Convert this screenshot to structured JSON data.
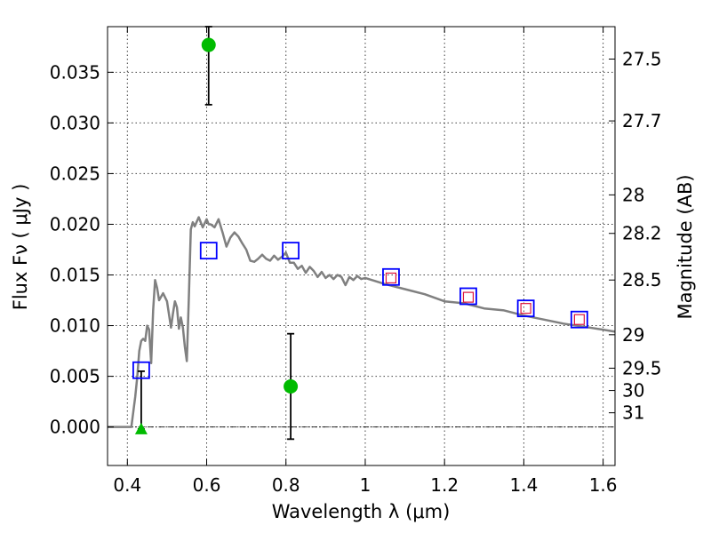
{
  "chart_data": {
    "type": "scatter",
    "title": "",
    "xlabel": "Wavelength  λ (μm)",
    "ylabel": "Flux  Fν  ( μJy )",
    "ylabel_right": "Magnitude (AB)",
    "xlim": [
      0.35,
      1.63
    ],
    "ylim": [
      -0.0038,
      0.0395
    ],
    "grid": true,
    "x_ticks": [
      {
        "value": 0.4,
        "label": "0.4"
      },
      {
        "value": 0.6,
        "label": "0.6"
      },
      {
        "value": 0.8,
        "label": "0.8"
      },
      {
        "value": 1.0,
        "label": "1"
      },
      {
        "value": 1.2,
        "label": "1.2"
      },
      {
        "value": 1.4,
        "label": "1.4"
      },
      {
        "value": 1.6,
        "label": "1.6"
      }
    ],
    "y_ticks": [
      {
        "value": 0.0,
        "label": "0.000"
      },
      {
        "value": 0.005,
        "label": "0.005"
      },
      {
        "value": 0.01,
        "label": "0.010"
      },
      {
        "value": 0.015,
        "label": "0.015"
      },
      {
        "value": 0.02,
        "label": "0.020"
      },
      {
        "value": 0.025,
        "label": "0.025"
      },
      {
        "value": 0.03,
        "label": "0.030"
      },
      {
        "value": 0.035,
        "label": "0.035"
      }
    ],
    "right_ticks": [
      {
        "flux": 0.0363,
        "label": "27.5"
      },
      {
        "flux": 0.0302,
        "label": "27.7"
      },
      {
        "flux": 0.0229,
        "label": "28"
      },
      {
        "flux": 0.0191,
        "label": "28.2"
      },
      {
        "flux": 0.0145,
        "label": "28.5"
      },
      {
        "flux": 0.0091,
        "label": "29"
      },
      {
        "flux": 0.0058,
        "label": "29.5"
      },
      {
        "flux": 0.0036,
        "label": "30"
      },
      {
        "flux": 0.0014,
        "label": "31"
      }
    ],
    "series": [
      {
        "kind": "line",
        "color": "#808080",
        "x": [
          0.35,
          0.41,
          0.415,
          0.42,
          0.425,
          0.43,
          0.435,
          0.44,
          0.445,
          0.45,
          0.455,
          0.46,
          0.465,
          0.47,
          0.475,
          0.48,
          0.49,
          0.5,
          0.51,
          0.515,
          0.52,
          0.525,
          0.53,
          0.535,
          0.54,
          0.545,
          0.55,
          0.555,
          0.56,
          0.565,
          0.57,
          0.58,
          0.59,
          0.6,
          0.605,
          0.61,
          0.62,
          0.63,
          0.64,
          0.65,
          0.66,
          0.67,
          0.68,
          0.69,
          0.7,
          0.71,
          0.72,
          0.73,
          0.74,
          0.75,
          0.76,
          0.77,
          0.78,
          0.79,
          0.8,
          0.81,
          0.82,
          0.83,
          0.84,
          0.85,
          0.86,
          0.87,
          0.88,
          0.89,
          0.9,
          0.91,
          0.92,
          0.93,
          0.94,
          0.95,
          0.96,
          0.97,
          0.98,
          0.99,
          1.0,
          1.05,
          1.1,
          1.15,
          1.2,
          1.25,
          1.3,
          1.35,
          1.4,
          1.45,
          1.5,
          1.55,
          1.6,
          1.63
        ],
        "y": [
          0.0,
          0.0,
          0.0015,
          0.003,
          0.005,
          0.0075,
          0.0085,
          0.0087,
          0.0085,
          0.01,
          0.0096,
          0.0063,
          0.0115,
          0.0145,
          0.0137,
          0.0125,
          0.0132,
          0.0124,
          0.0098,
          0.0112,
          0.0124,
          0.0118,
          0.0097,
          0.0108,
          0.0098,
          0.0079,
          0.0065,
          0.0125,
          0.0195,
          0.0202,
          0.0198,
          0.0207,
          0.0197,
          0.0205,
          0.02,
          0.02,
          0.0197,
          0.0205,
          0.0192,
          0.0178,
          0.0187,
          0.0192,
          0.0188,
          0.0181,
          0.0175,
          0.0164,
          0.0163,
          0.0166,
          0.017,
          0.0166,
          0.0164,
          0.0169,
          0.0165,
          0.0168,
          0.0172,
          0.0162,
          0.0162,
          0.0156,
          0.0159,
          0.0152,
          0.0158,
          0.0154,
          0.0148,
          0.0153,
          0.0147,
          0.015,
          0.0146,
          0.015,
          0.0148,
          0.014,
          0.0148,
          0.0145,
          0.0149,
          0.0146,
          0.0147,
          0.0141,
          0.0136,
          0.0131,
          0.0124,
          0.0122,
          0.0117,
          0.0115,
          0.011,
          0.0106,
          0.0102,
          0.0099,
          0.0096,
          0.0094
        ]
      },
      {
        "kind": "model_photometry",
        "marker": "square",
        "color": "#0000ff",
        "x": [
          0.435,
          0.605,
          0.812,
          1.065,
          1.26,
          1.405,
          1.54
        ],
        "y": [
          0.0056,
          0.0174,
          0.0174,
          0.0148,
          0.0129,
          0.0117,
          0.0106
        ]
      },
      {
        "kind": "observed_photometry",
        "marker": "square",
        "color": "#dc143c",
        "x": [
          1.065,
          1.26,
          1.405,
          1.54
        ],
        "y": [
          0.0147,
          0.0128,
          0.0117,
          0.0106
        ]
      },
      {
        "kind": "detections",
        "marker": "circle",
        "color": "#00bb00",
        "x": [
          0.605,
          0.812
        ],
        "y": [
          0.0377,
          0.004
        ],
        "yerr_low": [
          0.0318,
          -0.0012
        ],
        "yerr_high": [
          0.0395,
          0.0092
        ]
      },
      {
        "kind": "upper_limit",
        "marker": "triangle",
        "color": "#00bb00",
        "x": [
          0.435
        ],
        "y": [
          -0.0002
        ],
        "yerr_low": [
          -0.0002
        ],
        "yerr_high": [
          0.0055
        ]
      }
    ]
  }
}
